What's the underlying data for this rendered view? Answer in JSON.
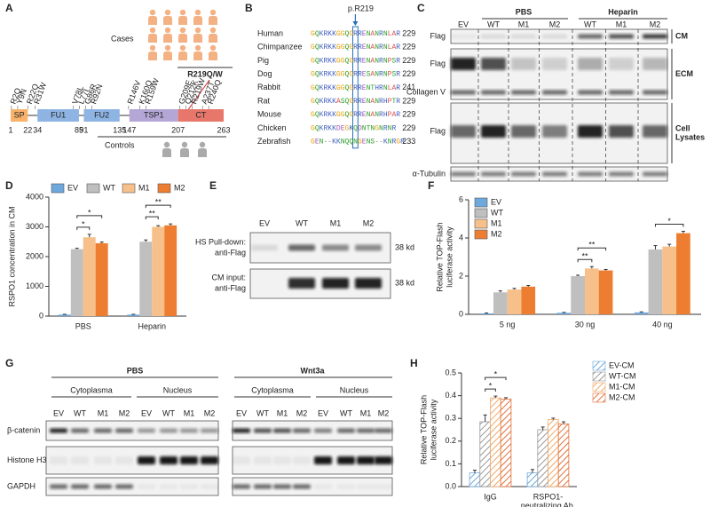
{
  "panel_labels": [
    "A",
    "B",
    "C",
    "D",
    "E",
    "F",
    "G",
    "H"
  ],
  "panel_a": {
    "cases": "Cases",
    "controls": "Controls",
    "variant": "R219Q/W",
    "positions": [
      1,
      22,
      34,
      85,
      91,
      135,
      147,
      207,
      263
    ],
    "domains": [
      {
        "name": "SP",
        "span": [
          0,
          1
        ],
        "color": "#f8b26a"
      },
      {
        "name": "FU1",
        "span": [
          2,
          3
        ],
        "color": "#8eb4e3"
      },
      {
        "name": "FU2",
        "span": [
          4,
          5
        ],
        "color": "#8eb4e3"
      },
      {
        "name": "TSP1",
        "span": [
          6,
          7
        ],
        "color": "#b4a7d6"
      },
      {
        "name": "CT",
        "span": [
          7,
          8
        ],
        "color": "#e8776b"
      }
    ],
    "mutations": [
      "R2Q",
      "Y9N",
      "R22Q",
      "R31W",
      "V78L",
      "L77I",
      "G86R",
      "R92N",
      "R146V",
      "K160Q",
      "R159W",
      "G209E",
      "Q212K",
      "R219W",
      "A237T",
      "R240Q"
    ]
  },
  "panel_b": {
    "marker": "p.R219",
    "rows": [
      {
        "species": "Human",
        "sequence": "GQKRKKGGQGRRENANRNLAR",
        "end": 229
      },
      {
        "species": "Chimpanzee",
        "sequence": "GQKRKKGGQGRRENANRNLAR",
        "end": 229
      },
      {
        "species": "Pig",
        "sequence": "GQKRKKGGQGRRENANRNPSR",
        "end": 229
      },
      {
        "species": "Dog",
        "sequence": "GQKRKKGGQGRRESANRNPSR",
        "end": 229
      },
      {
        "species": "Rabbit",
        "sequence": "GQKRKKGGQGRRENTHRNLAR",
        "end": 241
      },
      {
        "species": "Rat",
        "sequence": "GQKRKKASQGRRENANRHPTR",
        "end": 229
      },
      {
        "species": "Mouse",
        "sequence": "GQKRKKGGQGRRENANRHPAR",
        "end": 229
      },
      {
        "species": "Chicken",
        "sequence": "GQKRKKDEGKQDNTNGNRNR",
        "end": 229
      },
      {
        "species": "Zebrafish",
        "sequence": "GEN--KKNQQNGENS--KNRGR",
        "end": 233
      }
    ]
  },
  "panel_c": {
    "groups": [
      "PBS",
      "Heparin"
    ],
    "lanes": [
      "EV",
      "WT",
      "M1",
      "M2",
      "WT",
      "M1",
      "M2"
    ],
    "rows": [
      "Flag",
      "Flag",
      "Collagen V",
      "Flag",
      "α-Tubulin"
    ],
    "fractions": [
      [
        "CM"
      ],
      [
        "ECM"
      ],
      [
        "Cell",
        "Lysates"
      ]
    ]
  },
  "panel_e": {
    "lanes": [
      "EV",
      "WT",
      "M1",
      "M2"
    ],
    "rows": [
      [
        "HS Pull-down:",
        "anti-Flag"
      ],
      [
        "CM input:",
        "anti-Flag"
      ]
    ],
    "sizes": [
      "38 kd",
      "38 kd"
    ]
  },
  "panel_g": {
    "treatments": [
      "PBS",
      "Wnt3a"
    ],
    "fractions": [
      "Cytoplasma",
      "Nucleus",
      "Cytoplasma",
      "Nucleus"
    ],
    "lanes": [
      "EV",
      "WT",
      "M1",
      "M2",
      "EV",
      "WT",
      "M1",
      "M2",
      "EV",
      "WT",
      "M1",
      "M2",
      "EV",
      "WT",
      "M1",
      "M2"
    ],
    "rows": [
      "β-catenin",
      "Histone H3",
      "GAPDH"
    ]
  },
  "chart_data": [
    {
      "type": "bar",
      "ylabel": [
        "RSPO1 concentration in CM"
      ],
      "categories": [
        [
          "PBS"
        ],
        [
          "Heparin"
        ]
      ],
      "series": [
        {
          "name": "EV",
          "color": "#6fa8dc",
          "values": [
            50,
            50
          ],
          "errors": [
            10,
            10
          ]
        },
        {
          "name": "WT",
          "color": "#bfbfbf",
          "values": [
            2250,
            2500
          ],
          "errors": [
            30,
            60
          ]
        },
        {
          "name": "M1",
          "color": "#f7c08a",
          "values": [
            2650,
            3000
          ],
          "errors": [
            100,
            40
          ]
        },
        {
          "name": "M2",
          "color": "#ed7d31",
          "values": [
            2450,
            3050
          ],
          "errors": [
            40,
            50
          ]
        }
      ],
      "ylim": [
        0,
        4000
      ],
      "yticks": [
        0,
        1000,
        2000,
        3000,
        4000
      ],
      "legend": "top",
      "annotations": [
        {
          "label": "*",
          "category": 0,
          "series": [
            1,
            2
          ]
        },
        {
          "label": "*",
          "category": 0,
          "series": [
            1,
            3
          ]
        },
        {
          "label": "**",
          "category": 1,
          "series": [
            1,
            2
          ]
        },
        {
          "label": "**",
          "category": 1,
          "series": [
            1,
            3
          ]
        }
      ]
    },
    {
      "type": "bar",
      "ylabel": [
        "Relative TOP-Flash",
        "luciferase activity"
      ],
      "categories": [
        [
          "5 ng"
        ],
        [
          "30 ng"
        ],
        [
          "40 ng"
        ]
      ],
      "series": [
        {
          "name": "EV",
          "color": "#6fa8dc",
          "values": [
            0.05,
            0.08,
            0.1
          ],
          "errors": [
            0.02,
            0.02,
            0.03
          ]
        },
        {
          "name": "WT",
          "color": "#bfbfbf",
          "values": [
            1.15,
            2.0,
            3.4
          ],
          "errors": [
            0.08,
            0.05,
            0.2
          ]
        },
        {
          "name": "M1",
          "color": "#f7c08a",
          "values": [
            1.3,
            2.4,
            3.55
          ],
          "errors": [
            0.06,
            0.1,
            0.12
          ]
        },
        {
          "name": "M2",
          "color": "#ed7d31",
          "values": [
            1.45,
            2.3,
            4.25
          ],
          "errors": [
            0.06,
            0.05,
            0.1
          ]
        }
      ],
      "ylim": [
        0,
        6
      ],
      "yticks": [
        0,
        2,
        4,
        6
      ],
      "legend": "upper left",
      "annotations": [
        {
          "label": "**",
          "category": 1,
          "series": [
            1,
            2
          ]
        },
        {
          "label": "**",
          "category": 1,
          "series": [
            1,
            3
          ]
        },
        {
          "label": "*",
          "category": 2,
          "series": [
            1,
            3
          ]
        }
      ]
    },
    {
      "type": "bar",
      "hatch": true,
      "ylabel": [
        "Relative TOP-Flash",
        "luciferase activity"
      ],
      "categories": [
        [
          "IgG"
        ],
        [
          "RSPO1-",
          "neutralizing Ab."
        ]
      ],
      "series": [
        {
          "name": "EV-CM",
          "color": "#6fa8dc",
          "values": [
            0.06,
            0.06
          ],
          "errors": [
            0.012,
            0.015
          ]
        },
        {
          "name": "WT-CM",
          "color": "#999999",
          "values": [
            0.285,
            0.25
          ],
          "errors": [
            0.03,
            0.012
          ]
        },
        {
          "name": "M1-CM",
          "color": "#f0a868",
          "values": [
            0.39,
            0.295
          ],
          "errors": [
            0.008,
            0.006
          ]
        },
        {
          "name": "M2-CM",
          "color": "#e2703a",
          "values": [
            0.385,
            0.275
          ],
          "errors": [
            0.006,
            0.01
          ]
        }
      ],
      "ylim": [
        0,
        0.5
      ],
      "yticks": [
        {
          "value": 0,
          "label": "0.0"
        },
        0.1,
        0.2,
        0.3,
        0.4,
        0.5
      ],
      "legend": "right",
      "annotations": [
        {
          "label": "*",
          "category": 0,
          "series": [
            1,
            2
          ]
        },
        {
          "label": "*",
          "category": 0,
          "series": [
            1,
            3
          ]
        }
      ]
    }
  ]
}
